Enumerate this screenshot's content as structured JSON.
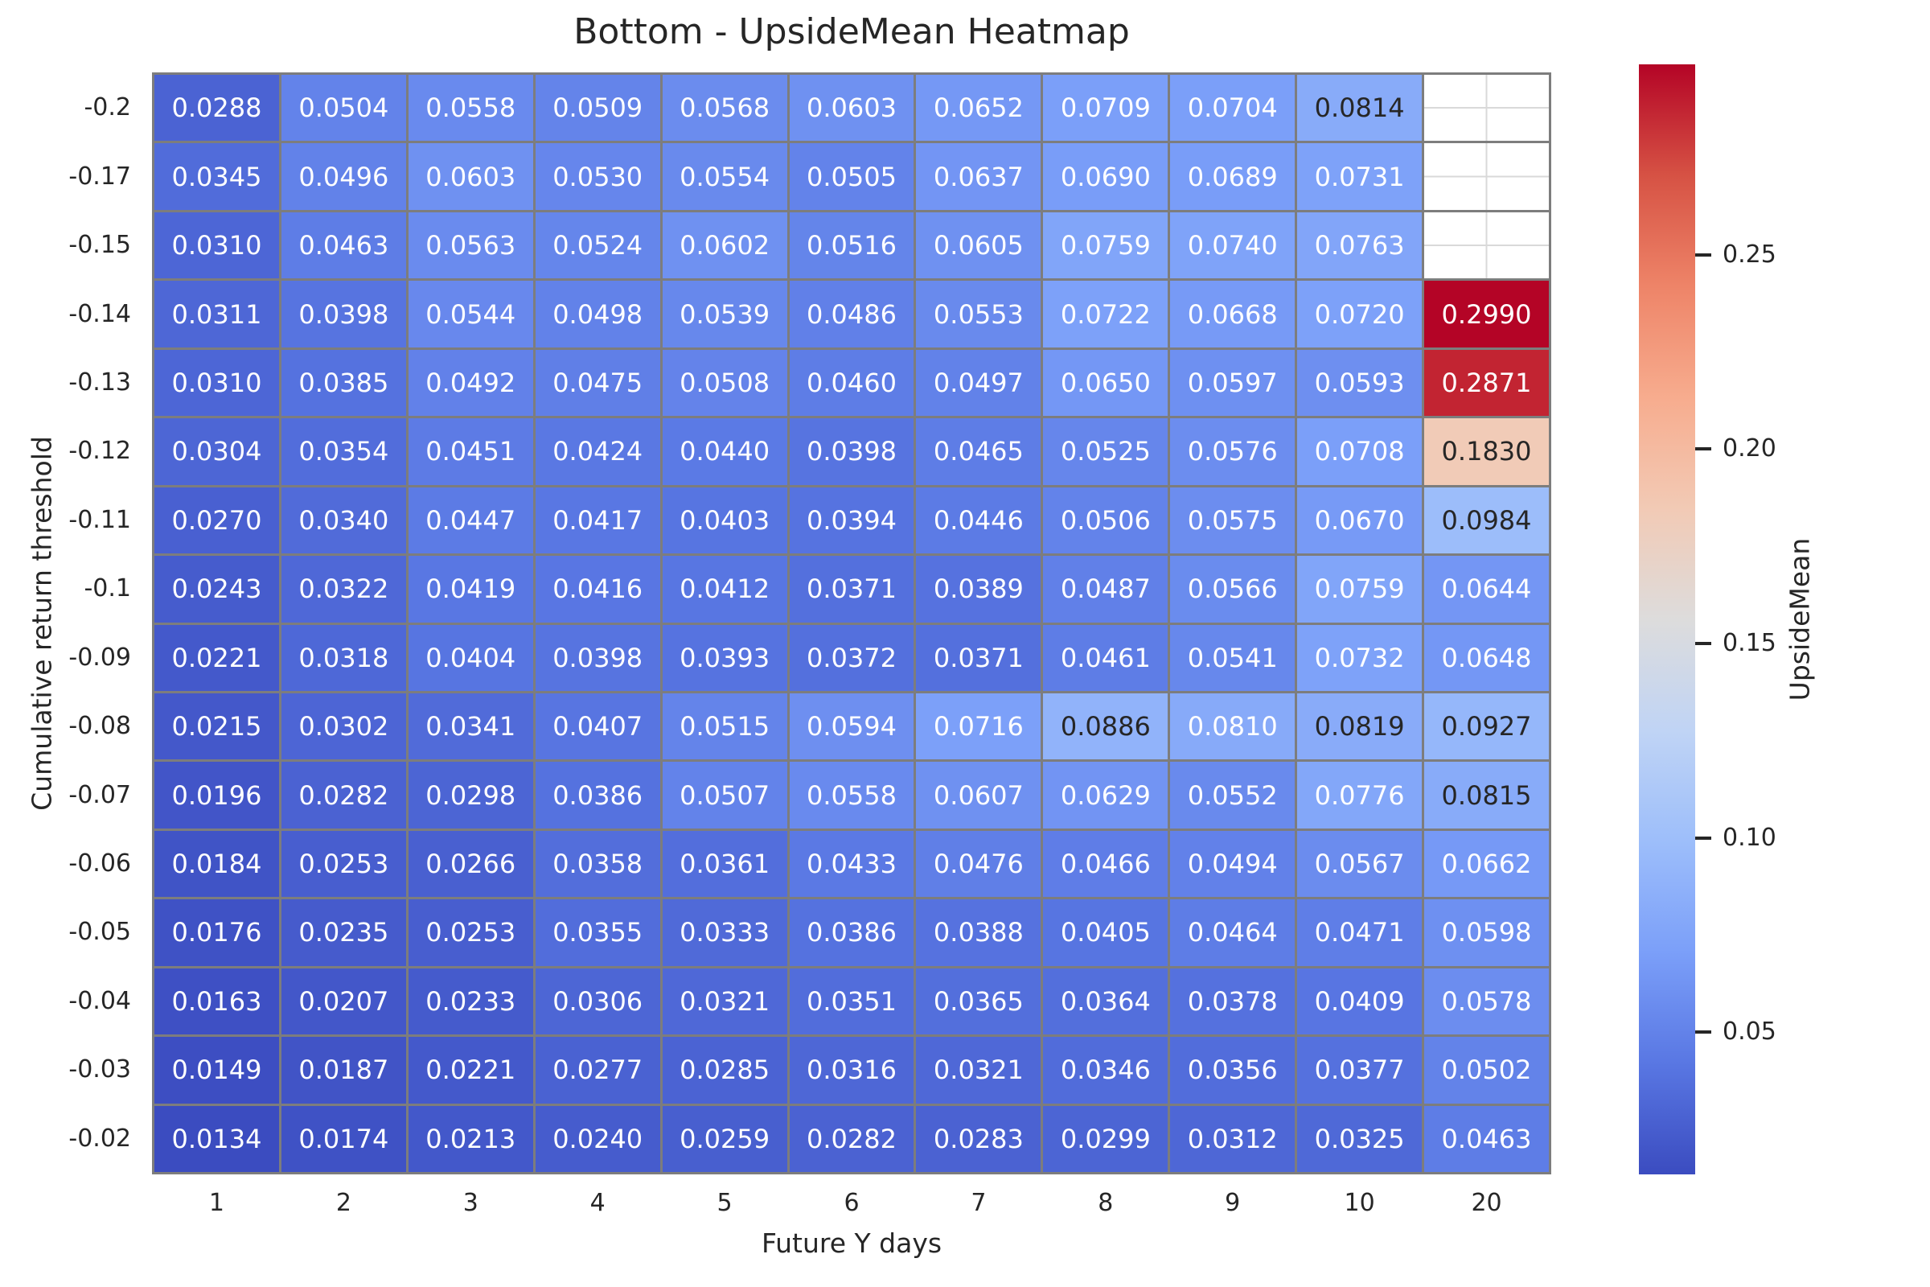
{
  "chart_data": {
    "type": "heatmap",
    "title": "Bottom - UpsideMean Heatmap",
    "xlabel": "Future Y days",
    "ylabel": "Cumulative return threshold",
    "x_categories": [
      "1",
      "2",
      "3",
      "4",
      "5",
      "6",
      "7",
      "8",
      "9",
      "10",
      "20"
    ],
    "y_categories": [
      "-0.2",
      "-0.17",
      "-0.15",
      "-0.14",
      "-0.13",
      "-0.12",
      "-0.11",
      "-0.1",
      "-0.09",
      "-0.08",
      "-0.07",
      "-0.06",
      "-0.05",
      "-0.04",
      "-0.03",
      "-0.02"
    ],
    "values": [
      [
        0.0288,
        0.0504,
        0.0558,
        0.0509,
        0.0568,
        0.0603,
        0.0652,
        0.0709,
        0.0704,
        0.0814,
        null
      ],
      [
        0.0345,
        0.0496,
        0.0603,
        0.053,
        0.0554,
        0.0505,
        0.0637,
        0.069,
        0.0689,
        0.0731,
        null
      ],
      [
        0.031,
        0.0463,
        0.0563,
        0.0524,
        0.0602,
        0.0516,
        0.0605,
        0.0759,
        0.074,
        0.0763,
        null
      ],
      [
        0.0311,
        0.0398,
        0.0544,
        0.0498,
        0.0539,
        0.0486,
        0.0553,
        0.0722,
        0.0668,
        0.072,
        0.299
      ],
      [
        0.031,
        0.0385,
        0.0492,
        0.0475,
        0.0508,
        0.046,
        0.0497,
        0.065,
        0.0597,
        0.0593,
        0.2871
      ],
      [
        0.0304,
        0.0354,
        0.0451,
        0.0424,
        0.044,
        0.0398,
        0.0465,
        0.0525,
        0.0576,
        0.0708,
        0.183
      ],
      [
        0.027,
        0.034,
        0.0447,
        0.0417,
        0.0403,
        0.0394,
        0.0446,
        0.0506,
        0.0575,
        0.067,
        0.0984
      ],
      [
        0.0243,
        0.0322,
        0.0419,
        0.0416,
        0.0412,
        0.0371,
        0.0389,
        0.0487,
        0.0566,
        0.0759,
        0.0644
      ],
      [
        0.0221,
        0.0318,
        0.0404,
        0.0398,
        0.0393,
        0.0372,
        0.0371,
        0.0461,
        0.0541,
        0.0732,
        0.0648
      ],
      [
        0.0215,
        0.0302,
        0.0341,
        0.0407,
        0.0515,
        0.0594,
        0.0716,
        0.0886,
        0.081,
        0.0819,
        0.0927
      ],
      [
        0.0196,
        0.0282,
        0.0298,
        0.0386,
        0.0507,
        0.0558,
        0.0607,
        0.0629,
        0.0552,
        0.0776,
        0.0815
      ],
      [
        0.0184,
        0.0253,
        0.0266,
        0.0358,
        0.0361,
        0.0433,
        0.0476,
        0.0466,
        0.0494,
        0.0567,
        0.0662
      ],
      [
        0.0176,
        0.0235,
        0.0253,
        0.0355,
        0.0333,
        0.0386,
        0.0388,
        0.0405,
        0.0464,
        0.0471,
        0.0598
      ],
      [
        0.0163,
        0.0207,
        0.0233,
        0.0306,
        0.0321,
        0.0351,
        0.0365,
        0.0364,
        0.0378,
        0.0409,
        0.0578
      ],
      [
        0.0149,
        0.0187,
        0.0221,
        0.0277,
        0.0285,
        0.0316,
        0.0321,
        0.0346,
        0.0356,
        0.0377,
        0.0502
      ],
      [
        0.0134,
        0.0174,
        0.0213,
        0.024,
        0.0259,
        0.0282,
        0.0283,
        0.0299,
        0.0312,
        0.0325,
        0.0463
      ]
    ],
    "value_format_decimals": 4,
    "colormap": "coolwarm",
    "vmin": 0.0134,
    "vmax": 0.299,
    "colorbar": {
      "label": "UpsideMean",
      "tick_labels": [
        "0.25",
        "0.20",
        "0.15",
        "0.10",
        "0.05"
      ]
    },
    "legend_position": "right",
    "grid_on": false,
    "colors": {
      "cell_border": "#7d7d7d",
      "missing_cell_grid": "#d9d9d9",
      "text_dark": "#262626",
      "text_light": "#ffffff",
      "cmap_low": "#3b4cc0",
      "cmap_mid": "#dddcdc",
      "cmap_high": "#b40426"
    }
  }
}
